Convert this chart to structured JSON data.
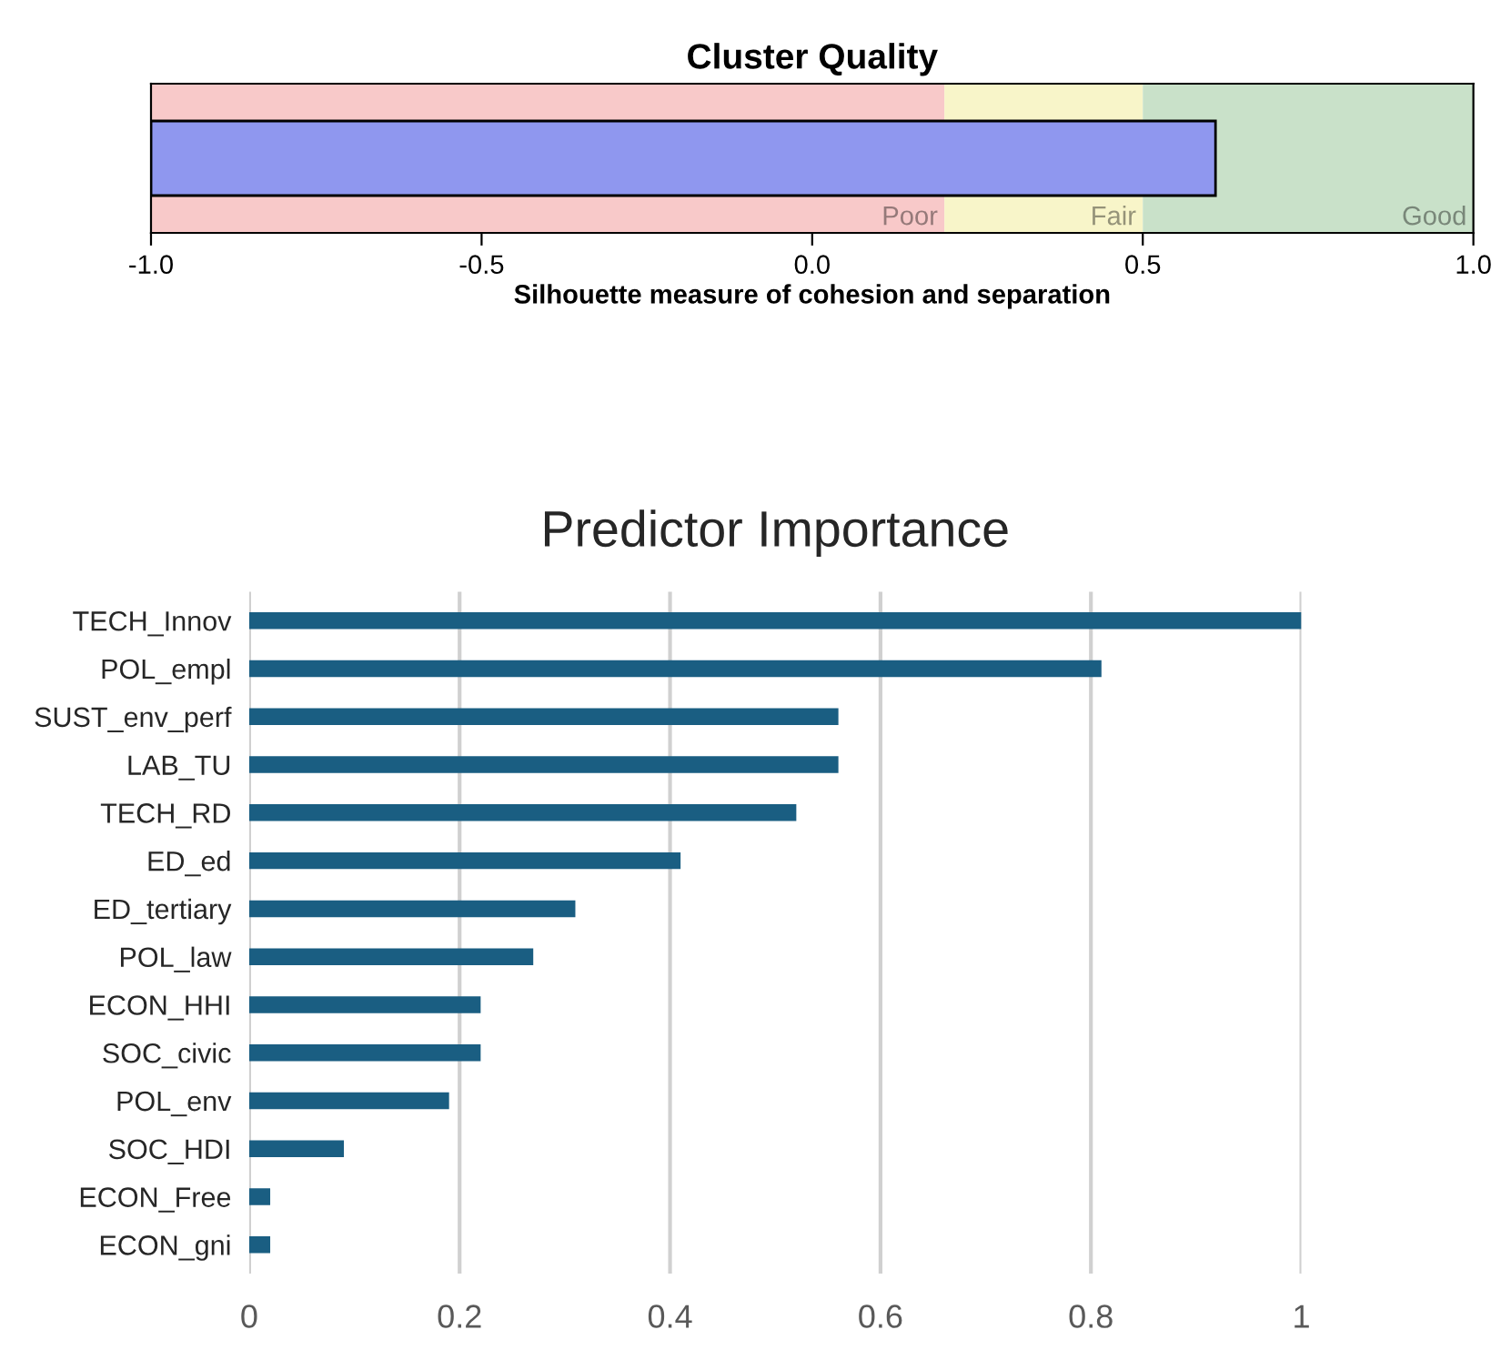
{
  "chart_data": [
    {
      "type": "bar",
      "orientation": "horizontal",
      "title": "Cluster Quality",
      "xlabel": "Silhouette measure of cohesion and separation",
      "categories": [
        null
      ],
      "base": [
        -1.0
      ],
      "values": [
        1.61
      ],
      "color": "#8f97ef",
      "xlim": [
        -1.0,
        1.0
      ],
      "xticks": [
        {
          "value": -1.0,
          "label": "-1.0"
        },
        {
          "value": -0.5,
          "label": "-0.5"
        },
        {
          "value": 0.0,
          "label": "0.0"
        },
        {
          "value": 0.5,
          "label": "0.5"
        },
        {
          "value": 1.0,
          "label": "1.0"
        }
      ],
      "tick_labels": "x",
      "grid": false,
      "legend": false,
      "bands": [
        {
          "axis": "x",
          "from": -1.0,
          "to": 0.2,
          "label": "Poor",
          "color": "#f8c9c9"
        },
        {
          "axis": "x",
          "from": 0.2,
          "to": 0.5,
          "label": "Fair",
          "color": "#f8f5c9"
        },
        {
          "axis": "x",
          "from": 0.5,
          "to": 1.0,
          "label": "Good",
          "color": "#c9e1c9"
        }
      ]
    },
    {
      "type": "bar",
      "orientation": "horizontal",
      "title": "Predictor Importance",
      "categories": [
        "TECH_Innov",
        "POL_empl",
        "SUST_env_perf",
        "LAB_TU",
        "TECH_RD",
        "ED_ed",
        "ED_tertiary",
        "POL_law",
        "ECON_HHI",
        "SOC_civic",
        "POL_env",
        "SOC_HDI",
        "ECON_Free",
        "ECON_gni"
      ],
      "values": [
        1.0,
        0.81,
        0.56,
        0.56,
        0.52,
        0.41,
        0.31,
        0.27,
        0.22,
        0.22,
        0.19,
        0.09,
        0.02,
        0.02
      ],
      "color": "#1a5e82",
      "xlim": [
        0,
        1
      ],
      "xticks": [
        0,
        0.2,
        0.4,
        0.6,
        0.8,
        1
      ],
      "grid": "x",
      "legend": false
    }
  ]
}
